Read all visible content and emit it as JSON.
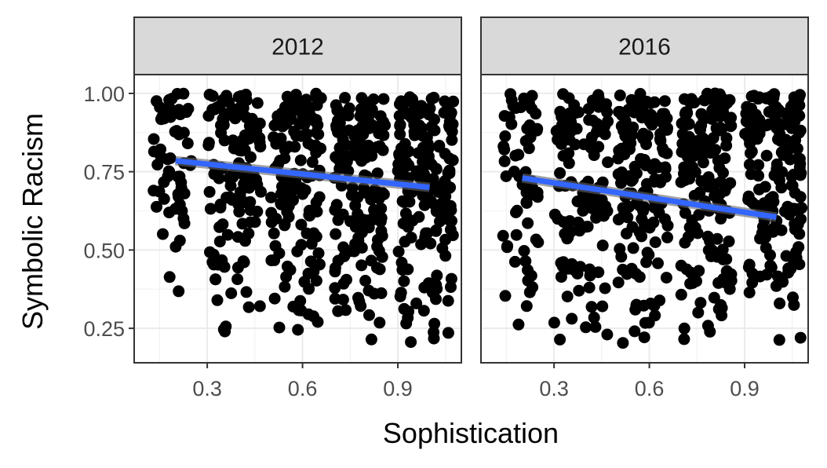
{
  "chart_data": {
    "type": "scatter",
    "xlabel": "Sophistication",
    "ylabel": "Symbolic Racism",
    "xlim": [
      0.07,
      1.1
    ],
    "ylim": [
      0.14,
      1.06
    ],
    "x_ticks": [
      0.3,
      0.6,
      0.9
    ],
    "x_tick_labels": [
      "0.3",
      "0.6",
      "0.9"
    ],
    "y_ticks": [
      0.25,
      0.5,
      0.75,
      1.0
    ],
    "y_tick_labels": [
      "0.25",
      "0.50",
      "0.75",
      "1.00"
    ],
    "grid": true,
    "point_color": "#000000",
    "fit_color": "#3366FF",
    "facets": [
      {
        "label": "2012",
        "fit_line": {
          "x": [
            0.2,
            1.0
          ],
          "y": [
            0.785,
            0.7
          ]
        },
        "columns": [
          {
            "x_range": [
              0.13,
              0.25
            ],
            "y_range": [
              0.33,
              1.0
            ],
            "density": 60
          },
          {
            "x_range": [
              0.3,
              0.47
            ],
            "y_range": [
              0.2,
              1.0
            ],
            "density": 120
          },
          {
            "x_range": [
              0.5,
              0.66
            ],
            "y_range": [
              0.2,
              1.0
            ],
            "density": 140
          },
          {
            "x_range": [
              0.7,
              0.86
            ],
            "y_range": [
              0.2,
              1.0
            ],
            "density": 150
          },
          {
            "x_range": [
              0.9,
              1.08
            ],
            "y_range": [
              0.18,
              1.0
            ],
            "density": 170
          }
        ]
      },
      {
        "label": "2016",
        "fit_line": {
          "x": [
            0.2,
            1.0
          ],
          "y": [
            0.73,
            0.605
          ]
        },
        "columns": [
          {
            "x_range": [
              0.13,
              0.25
            ],
            "y_range": [
              0.24,
              1.0
            ],
            "density": 60
          },
          {
            "x_range": [
              0.3,
              0.47
            ],
            "y_range": [
              0.18,
              1.0
            ],
            "density": 120
          },
          {
            "x_range": [
              0.5,
              0.66
            ],
            "y_range": [
              0.18,
              1.0
            ],
            "density": 150
          },
          {
            "x_range": [
              0.7,
              0.86
            ],
            "y_range": [
              0.18,
              1.0
            ],
            "density": 170
          },
          {
            "x_range": [
              0.9,
              1.08
            ],
            "y_range": [
              0.18,
              1.0
            ],
            "density": 160
          }
        ]
      }
    ]
  }
}
